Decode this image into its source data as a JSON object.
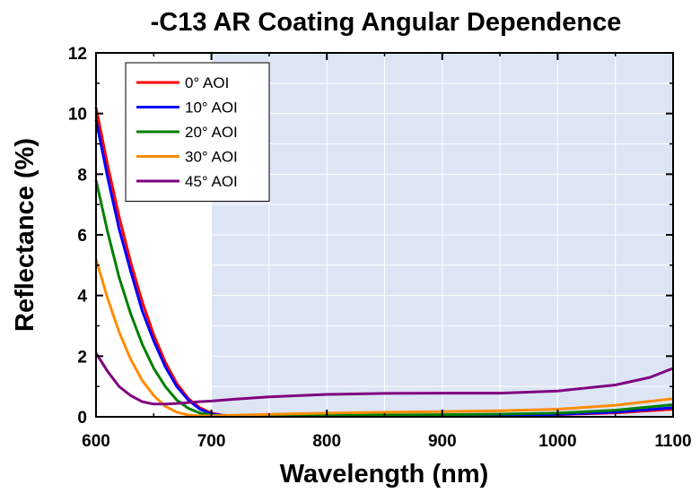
{
  "chart_data": {
    "type": "line",
    "title": "-C13 AR Coating Angular Dependence",
    "xlabel": "Wavelength (nm)",
    "ylabel": "Reflectance (%)",
    "xlim": [
      600,
      1100
    ],
    "ylim": [
      0,
      12
    ],
    "xticks": [
      "600",
      "700",
      "800",
      "900",
      "1000",
      "1100"
    ],
    "yticks": [
      "0",
      "2",
      "4",
      "6",
      "8",
      "10",
      "12"
    ],
    "grid": true,
    "legend_position": "top-left",
    "shaded_region": {
      "x_start": 700,
      "x_end": 1100,
      "color": "#dde5f5"
    },
    "series": [
      {
        "name": "0° AOI",
        "color": "#ff0000",
        "x": [
          600,
          610,
          620,
          630,
          640,
          650,
          660,
          670,
          680,
          690,
          700,
          710,
          720,
          740,
          760,
          800,
          850,
          900,
          950,
          1000,
          1050,
          1100
        ],
        "y": [
          10.2,
          8.3,
          6.6,
          5.1,
          3.8,
          2.7,
          1.8,
          1.1,
          0.6,
          0.3,
          0.12,
          0.05,
          0.03,
          0.02,
          0.02,
          0.02,
          0.03,
          0.04,
          0.05,
          0.07,
          0.13,
          0.25
        ]
      },
      {
        "name": "10° AOI",
        "color": "#0000ff",
        "x": [
          600,
          610,
          620,
          630,
          640,
          650,
          660,
          670,
          680,
          690,
          700,
          710,
          720,
          740,
          760,
          800,
          850,
          900,
          950,
          1000,
          1050,
          1100
        ],
        "y": [
          9.8,
          7.9,
          6.2,
          4.8,
          3.5,
          2.5,
          1.65,
          1.0,
          0.55,
          0.25,
          0.1,
          0.04,
          0.03,
          0.02,
          0.02,
          0.02,
          0.03,
          0.04,
          0.05,
          0.08,
          0.15,
          0.3
        ]
      },
      {
        "name": "20° AOI",
        "color": "#008000",
        "x": [
          600,
          610,
          620,
          630,
          640,
          650,
          660,
          670,
          680,
          690,
          700,
          710,
          720,
          740,
          760,
          800,
          850,
          900,
          950,
          1000,
          1050,
          1100
        ],
        "y": [
          7.8,
          6.1,
          4.6,
          3.4,
          2.4,
          1.6,
          1.0,
          0.55,
          0.28,
          0.12,
          0.06,
          0.03,
          0.03,
          0.03,
          0.04,
          0.05,
          0.06,
          0.07,
          0.09,
          0.12,
          0.22,
          0.4
        ]
      },
      {
        "name": "30° AOI",
        "color": "#ff8c00",
        "x": [
          600,
          610,
          620,
          630,
          640,
          650,
          660,
          670,
          680,
          690,
          700,
          720,
          750,
          800,
          850,
          900,
          950,
          1000,
          1050,
          1100
        ],
        "y": [
          5.2,
          3.9,
          2.8,
          1.9,
          1.2,
          0.7,
          0.35,
          0.15,
          0.06,
          0.03,
          0.03,
          0.05,
          0.08,
          0.12,
          0.15,
          0.17,
          0.2,
          0.25,
          0.38,
          0.6
        ]
      },
      {
        "name": "45° AOI",
        "color": "#800080",
        "x": [
          600,
          610,
          620,
          630,
          640,
          650,
          660,
          670,
          680,
          690,
          700,
          720,
          750,
          800,
          850,
          900,
          950,
          1000,
          1050,
          1080,
          1100
        ],
        "y": [
          2.1,
          1.5,
          1.0,
          0.7,
          0.5,
          0.42,
          0.42,
          0.44,
          0.47,
          0.5,
          0.52,
          0.58,
          0.66,
          0.74,
          0.77,
          0.78,
          0.78,
          0.85,
          1.05,
          1.3,
          1.6
        ]
      }
    ]
  }
}
